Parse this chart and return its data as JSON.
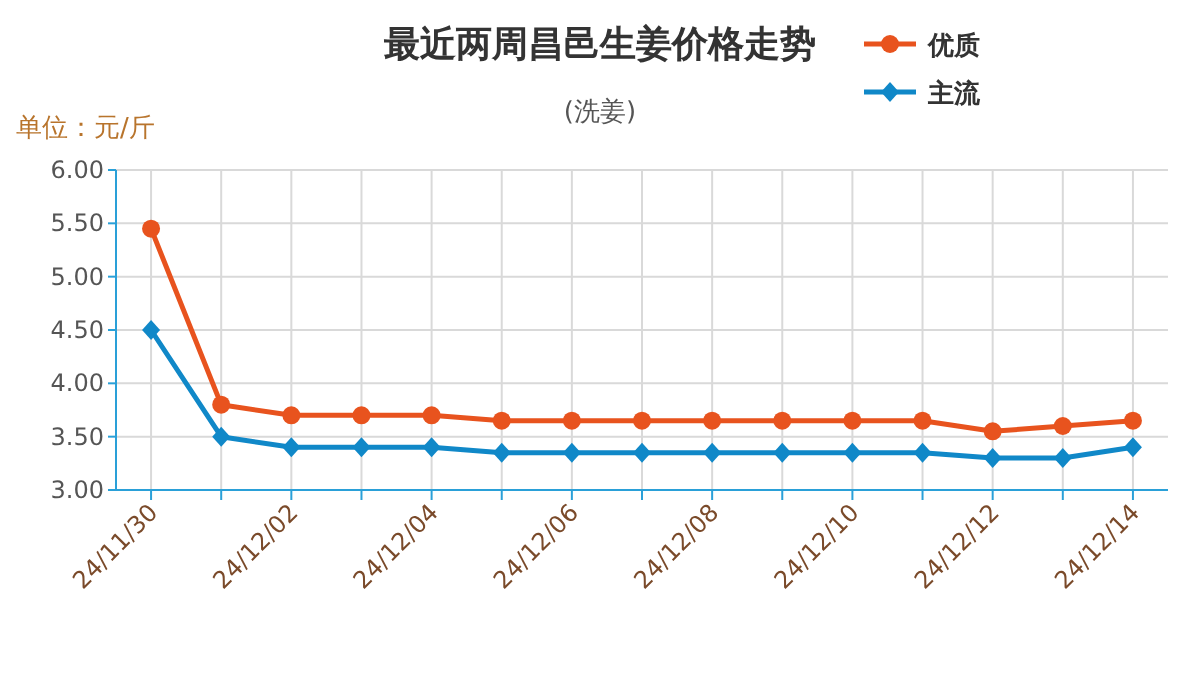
{
  "chart_data": {
    "type": "line",
    "title": "最近两周昌邑生姜价格走势",
    "subtitle": "(洗姜)",
    "ylabel": "单位：元/斤",
    "categories": [
      "24/11/30",
      null,
      "24/12/02",
      null,
      "24/12/04",
      null,
      "24/12/06",
      null,
      "24/12/08",
      null,
      "24/12/10",
      null,
      "24/12/12",
      null,
      "24/12/14"
    ],
    "series": [
      {
        "name": "优质",
        "color": "#e8531e",
        "marker": "circle",
        "values": [
          5.45,
          3.8,
          3.7,
          3.7,
          3.7,
          3.65,
          3.65,
          3.65,
          3.65,
          3.65,
          3.65,
          3.65,
          3.55,
          3.6,
          3.65
        ]
      },
      {
        "name": "主流",
        "color": "#1088c8",
        "marker": "diamond",
        "values": [
          4.5,
          3.5,
          3.4,
          3.4,
          3.4,
          3.35,
          3.35,
          3.35,
          3.35,
          3.35,
          3.35,
          3.35,
          3.3,
          3.3,
          3.4
        ]
      }
    ],
    "ylim": [
      3,
      6
    ],
    "yticks": [
      {
        "value": 3,
        "label": "3.00"
      },
      {
        "value": 3.5,
        "label": "3.50"
      },
      {
        "value": 4,
        "label": "4.00"
      },
      {
        "value": 4.5,
        "label": "4.50"
      },
      {
        "value": 5,
        "label": "5.00"
      },
      {
        "value": 5.5,
        "label": "5.50"
      },
      {
        "value": 6,
        "label": "6.00"
      }
    ],
    "grid": true,
    "legend": "top right",
    "line_style": "solid"
  }
}
